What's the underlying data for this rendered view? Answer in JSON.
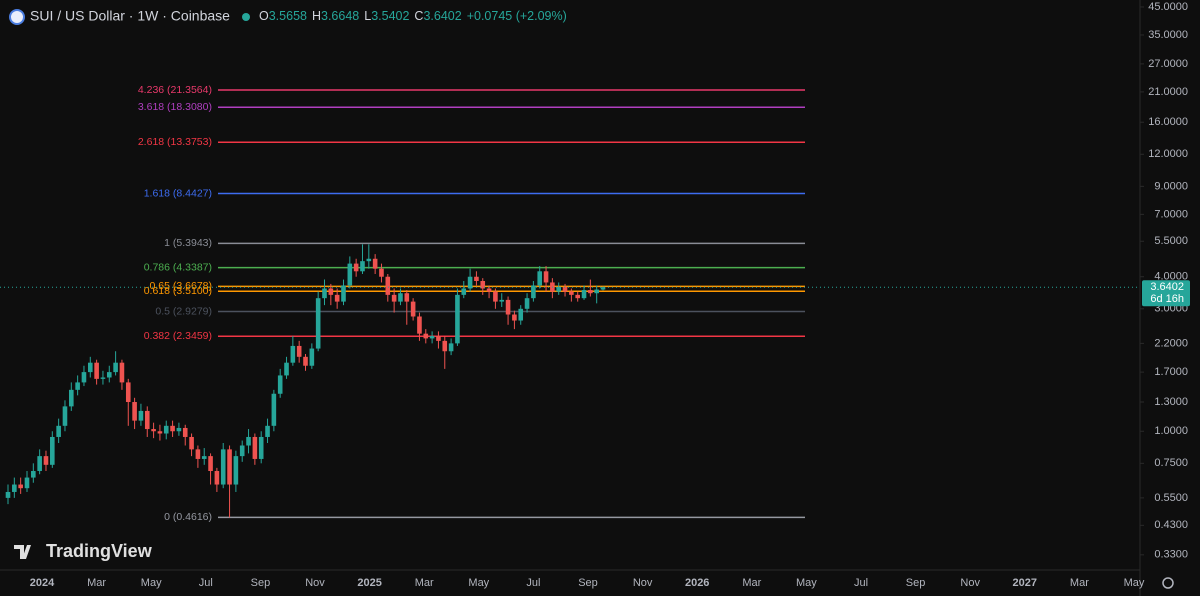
{
  "chart_data": {
    "type": "candlestick",
    "title": "SUI / US Dollar · 1W · Coinbase",
    "ohlc_header": [
      {
        "label": "O",
        "value": 3.5658
      },
      {
        "label": "H",
        "value": 3.6648
      },
      {
        "label": "L",
        "value": 3.5402
      },
      {
        "label": "C",
        "value": 3.6402
      }
    ],
    "change": "+0.0745 (+2.09%)",
    "last_price": 3.6402,
    "countdown": "6d 16h",
    "logo": "TradingView",
    "log_scale": true,
    "up_color": "#26a69a",
    "down_color": "#ef5350",
    "ylim": [
      0.288,
      47.9
    ],
    "yticks": [
      {
        "value": 45,
        "label": "45.0000"
      },
      {
        "value": 35,
        "label": "35.0000"
      },
      {
        "value": 27,
        "label": "27.0000"
      },
      {
        "value": 21,
        "label": "21.0000"
      },
      {
        "value": 16,
        "label": "16.0000"
      },
      {
        "value": 12,
        "label": "12.0000"
      },
      {
        "value": 9,
        "label": "9.0000"
      },
      {
        "value": 7,
        "label": "7.0000"
      },
      {
        "value": 5.5,
        "label": "5.5000"
      },
      {
        "value": 4,
        "label": "4.0000"
      },
      {
        "value": 3,
        "label": "3.0000"
      },
      {
        "value": 2.2,
        "label": "2.2000"
      },
      {
        "value": 1.7,
        "label": "1.7000"
      },
      {
        "value": 1.3,
        "label": "1.3000"
      },
      {
        "value": 1,
        "label": "1.0000"
      },
      {
        "value": 0.75,
        "label": "0.7500"
      },
      {
        "value": 0.55,
        "label": "0.5500"
      },
      {
        "value": 0.43,
        "label": "0.4300"
      },
      {
        "value": 0.33,
        "label": "0.3300"
      }
    ],
    "x_labels": [
      "2024",
      "Mar",
      "May",
      "Jul",
      "Sep",
      "Nov",
      "2025",
      "Mar",
      "May",
      "Jul",
      "Sep",
      "Nov",
      "2026",
      "Mar",
      "May",
      "Jul",
      "Sep",
      "Nov",
      "2027",
      "Mar",
      "May"
    ],
    "fib_levels": [
      {
        "label": "4.236 (21.3564)",
        "value": 21.3564,
        "color": "#e9396b"
      },
      {
        "label": "3.618 (18.3080)",
        "value": 18.308,
        "color": "#b03fc0"
      },
      {
        "label": "2.618 (13.3753)",
        "value": 13.3753,
        "color": "#f23645"
      },
      {
        "label": "1.618 (8.4427)",
        "value": 8.4427,
        "color": "#3d6cf0"
      },
      {
        "label": "1 (5.3943)",
        "value": 5.3943,
        "color": "#8a8d96"
      },
      {
        "label": "0.786 (4.3387)",
        "value": 4.3387,
        "color": "#4caf50"
      },
      {
        "label": "0.65 (3.6678)",
        "value": 3.6678,
        "color": "#ff9800"
      },
      {
        "label": "0.618 (3.5100)",
        "value": 3.51,
        "color": "#ff9800"
      },
      {
        "label": "0.5 (2.9279)",
        "value": 2.9279,
        "color": "#4c525e"
      },
      {
        "label": "0.382 (2.3459)",
        "value": 2.3459,
        "color": "#f23645"
      },
      {
        "label": "0 (0.4616)",
        "value": 0.4616,
        "color": "#9598a1"
      }
    ],
    "open": [
      0.55,
      0.58,
      0.62,
      0.6,
      0.66,
      0.7,
      0.8,
      0.74,
      0.95,
      1.05,
      1.25,
      1.45,
      1.55,
      1.7,
      1.85,
      1.6,
      1.62,
      1.7,
      1.85,
      1.55,
      1.3,
      1.1,
      1.2,
      1.02,
      1.0,
      0.98,
      1.05,
      1.0,
      1.03,
      0.95,
      0.85,
      0.78,
      0.8,
      0.7,
      0.62,
      0.85,
      0.62,
      0.8,
      0.88,
      0.95,
      0.78,
      0.95,
      1.05,
      1.4,
      1.65,
      1.85,
      2.15,
      1.95,
      1.8,
      2.1,
      3.3,
      3.6,
      3.4,
      3.2,
      3.7,
      4.5,
      4.2,
      4.6,
      4.7,
      4.3,
      4.0,
      3.4,
      3.2,
      3.45,
      3.2,
      2.8,
      2.4,
      2.3,
      2.35,
      2.25,
      2.05,
      2.2,
      3.4,
      3.6,
      4.0,
      3.85,
      3.6,
      3.5,
      3.2,
      3.25,
      2.85,
      2.7,
      3.0,
      3.3,
      3.7,
      4.2,
      3.8,
      3.5,
      3.65,
      3.5,
      3.4,
      3.3,
      3.55,
      3.45,
      3.5658
    ],
    "high": [
      0.62,
      0.66,
      0.66,
      0.7,
      0.75,
      0.85,
      0.84,
      1.0,
      1.12,
      1.32,
      1.55,
      1.65,
      1.8,
      1.95,
      1.9,
      1.72,
      1.8,
      2.05,
      1.9,
      1.6,
      1.35,
      1.28,
      1.25,
      1.08,
      1.06,
      1.1,
      1.1,
      1.08,
      1.06,
      0.98,
      0.88,
      0.86,
      0.82,
      0.72,
      0.9,
      0.88,
      0.84,
      0.92,
      1.02,
      0.98,
      1.0,
      1.12,
      1.45,
      1.75,
      1.95,
      2.35,
      2.25,
      2.0,
      2.2,
      3.5,
      3.9,
      3.75,
      3.6,
      3.9,
      4.8,
      4.7,
      5.35,
      5.35,
      4.9,
      4.5,
      4.1,
      3.6,
      3.6,
      3.55,
      3.3,
      2.9,
      2.5,
      2.45,
      2.45,
      2.35,
      2.3,
      3.6,
      3.85,
      4.3,
      4.2,
      3.95,
      3.7,
      3.6,
      3.45,
      3.35,
      2.95,
      3.1,
      3.45,
      3.85,
      4.4,
      4.4,
      3.95,
      3.8,
      3.75,
      3.6,
      3.5,
      3.7,
      3.9,
      3.7,
      3.6648
    ],
    "low": [
      0.52,
      0.55,
      0.57,
      0.58,
      0.63,
      0.68,
      0.7,
      0.72,
      0.9,
      1.0,
      1.2,
      1.38,
      1.5,
      1.62,
      1.52,
      1.52,
      1.55,
      1.65,
      1.45,
      1.05,
      1.02,
      1.05,
      0.95,
      0.94,
      0.92,
      0.93,
      0.95,
      0.96,
      0.88,
      0.8,
      0.72,
      0.74,
      0.62,
      0.58,
      0.6,
      0.4616,
      0.58,
      0.76,
      0.82,
      0.74,
      0.75,
      0.9,
      1.0,
      1.35,
      1.6,
      1.8,
      1.85,
      1.72,
      1.75,
      2.05,
      3.1,
      3.1,
      3.0,
      3.1,
      3.6,
      4.0,
      4.1,
      4.3,
      4.1,
      3.8,
      3.2,
      2.9,
      3.1,
      2.6,
      2.7,
      2.25,
      2.2,
      2.2,
      2.1,
      1.75,
      1.98,
      2.15,
      3.3,
      3.5,
      3.7,
      3.4,
      3.3,
      3.0,
      3.05,
      2.6,
      2.5,
      2.6,
      2.9,
      3.2,
      3.6,
      3.5,
      3.3,
      3.4,
      3.35,
      3.2,
      3.2,
      3.25,
      3.35,
      3.15,
      3.5402
    ],
    "close": [
      0.58,
      0.62,
      0.6,
      0.66,
      0.7,
      0.8,
      0.74,
      0.95,
      1.05,
      1.25,
      1.45,
      1.55,
      1.7,
      1.85,
      1.6,
      1.62,
      1.7,
      1.85,
      1.55,
      1.3,
      1.1,
      1.2,
      1.02,
      1.0,
      0.98,
      1.05,
      1.0,
      1.03,
      0.95,
      0.85,
      0.78,
      0.8,
      0.7,
      0.62,
      0.85,
      0.62,
      0.8,
      0.88,
      0.95,
      0.78,
      0.95,
      1.05,
      1.4,
      1.65,
      1.85,
      2.15,
      1.95,
      1.8,
      2.1,
      3.3,
      3.6,
      3.4,
      3.2,
      3.7,
      4.5,
      4.2,
      4.6,
      4.7,
      4.3,
      4.0,
      3.4,
      3.2,
      3.45,
      3.2,
      2.8,
      2.4,
      2.3,
      2.35,
      2.25,
      2.05,
      2.2,
      3.4,
      3.6,
      4.0,
      3.85,
      3.6,
      3.5,
      3.2,
      3.25,
      2.85,
      2.7,
      3.0,
      3.3,
      3.7,
      4.2,
      3.8,
      3.5,
      3.65,
      3.5,
      3.4,
      3.3,
      3.55,
      3.45,
      3.5658,
      3.6402
    ]
  }
}
